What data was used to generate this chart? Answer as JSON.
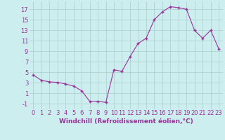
{
  "x": [
    0,
    1,
    2,
    3,
    4,
    5,
    6,
    7,
    8,
    9,
    10,
    11,
    12,
    13,
    14,
    15,
    16,
    17,
    18,
    19,
    20,
    21,
    22,
    23
  ],
  "y": [
    4.5,
    3.5,
    3.2,
    3.1,
    2.8,
    2.4,
    1.5,
    -0.5,
    -0.5,
    -0.7,
    5.5,
    5.2,
    8.0,
    10.5,
    11.5,
    15.0,
    16.5,
    17.5,
    17.3,
    17.0,
    13.0,
    11.5,
    13.0,
    9.5
  ],
  "line_color": "#993399",
  "marker": "+",
  "marker_size": 3.5,
  "bg_color": "#cceeee",
  "grid_color": "#aacccc",
  "tick_color": "#993399",
  "label_color": "#993399",
  "xlabel": "Windchill (Refroidissement éolien,°C)",
  "xlim": [
    -0.5,
    23.5
  ],
  "ylim": [
    -2,
    18.5
  ],
  "yticks": [
    -1,
    1,
    3,
    5,
    7,
    9,
    11,
    13,
    15,
    17
  ],
  "xticks": [
    0,
    1,
    2,
    3,
    4,
    5,
    6,
    7,
    8,
    9,
    10,
    11,
    12,
    13,
    14,
    15,
    16,
    17,
    18,
    19,
    20,
    21,
    22,
    23
  ],
  "tick_fontsize": 6,
  "xlabel_fontsize": 6.5
}
